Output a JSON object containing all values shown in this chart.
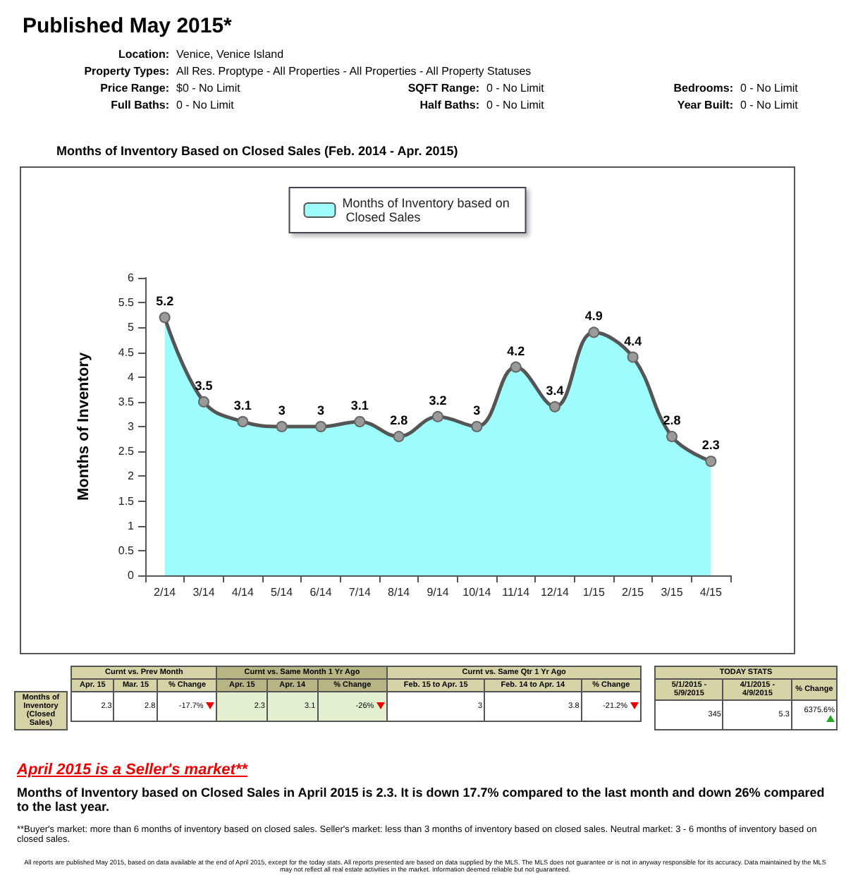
{
  "chart_data": {
    "type": "area",
    "title": "Months of Inventory Based on Closed Sales (Feb. 2014 - Apr. 2015)",
    "ylabel": "Months of Inventory",
    "categories": [
      "2/14",
      "3/14",
      "4/14",
      "5/14",
      "6/14",
      "7/14",
      "8/14",
      "9/14",
      "10/14",
      "11/14",
      "12/14",
      "1/15",
      "2/15",
      "3/15",
      "4/15"
    ],
    "series": [
      {
        "name": "Months of Inventory based on Closed Sales",
        "color": "#9ffcfc",
        "values": [
          5.2,
          3.5,
          3.1,
          3,
          3,
          3.1,
          2.8,
          3.2,
          3,
          4.2,
          3.4,
          4.9,
          4.4,
          2.8,
          2.3
        ]
      }
    ],
    "ylim": [
      0,
      6
    ],
    "yticks": [
      0,
      0.5,
      1,
      1.5,
      2,
      2.5,
      3,
      3.5,
      4,
      4.5,
      5,
      5.5,
      6
    ],
    "legend": "top",
    "data_labels": true,
    "marker": "circle",
    "line_style": "solid",
    "annotations": [
      "Published May 2015*",
      "Location:",
      "Venice, Venice Island",
      "Property Types:",
      "All Res. Proptype - All Properties - All Properties - All Property Statuses",
      "Price Range:",
      "$0 - No Limit",
      "SQFT Range:",
      "0 - No Limit",
      "Bedrooms:",
      "0 - No Limit",
      "Full Baths:",
      "0 - No Limit",
      "Half Baths:",
      "0 - No Limit",
      "Year Built:",
      "0 - No Limit",
      "Curnt vs. Prev Month",
      "Curnt vs. Same Month 1 Yr Ago",
      "Curnt vs. Same Qtr 1 Yr Ago",
      "TODAY STATS",
      "Apr. 15",
      "Mar. 15",
      "% Change",
      "Apr. 15",
      "Apr. 14",
      "% Change",
      "Feb. 15 to Apr. 15",
      "Feb. 14 to Apr. 14",
      "% Change",
      "5/1/2015 - 5/9/2015",
      "4/1/2015 - 4/9/2015",
      "% Change",
      "Months of Inventory (Closed Sales)",
      "2.3",
      "2.8",
      "-17.7%",
      "2.3",
      "3.1",
      "-26%",
      "3",
      "3.8",
      "-21.2%",
      "345",
      "5.3",
      "6375.6%",
      "April 2015 is a Seller's market**",
      "Months of Inventory based on Closed Sales in April 2015 is 2.3. It is down 17.7% compared to the last month and down 26% compared to the last year.",
      "**Buyer's market: more than 6 months of inventory based on closed sales. Seller's market: less than 3 months of inventory based on closed sales. Neutral market: 3 - 6 months of inventory based on closed sales.",
      "All reports are published May 2015, based on data available at the end of April 2015, except for the today stats. All reports presented are based on data supplied by the MLS. The MLS does not guarantee or is not in anyway responsible for its accuracy. Data maintained by the MLS may not reflect all real estate activities in the market. Information deemed reliable but not guaranteed."
    ]
  }
}
